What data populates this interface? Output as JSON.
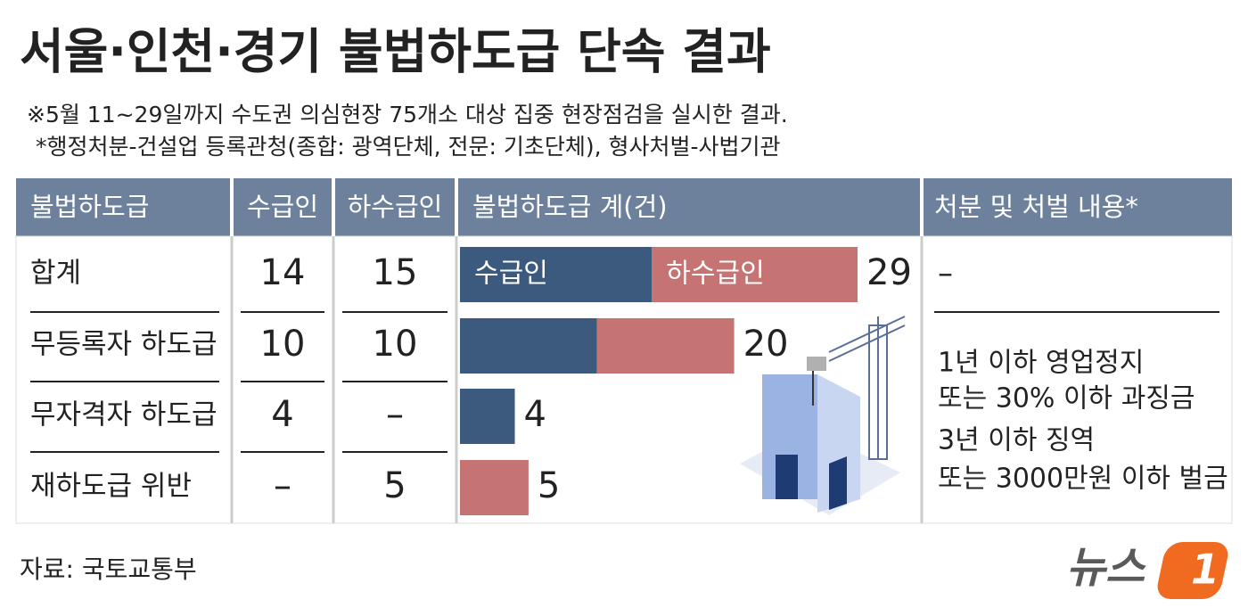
{
  "title": "서울·인천·경기 불법하도급 단속 결과",
  "notes": [
    "※5월 11~29일까지 수도권 의심현장 75개소 대상 집중 현장점검을 실시한 결과.",
    "*행정처분-건설업 등록관청(종합: 광역단체, 전문: 기초단체), 형사처벌-사법기관"
  ],
  "source": "자료: 국토교통부",
  "logo": {
    "text": "뉴스",
    "mark": "1"
  },
  "chart_data": {
    "type": "bar",
    "orientation": "horizontal",
    "stacked": true,
    "columns": [
      "불법하도급",
      "수급인",
      "하수급인",
      "불법하도급 계(건)",
      "처분 및 처벌 내용*"
    ],
    "categories": [
      "합계",
      "무등록자 하도급",
      "무자격자 하도급",
      "재하도급 위반"
    ],
    "series": [
      {
        "name": "수급인",
        "color": "#3b5a7d",
        "values": [
          14,
          10,
          4,
          0
        ],
        "value_labels": [
          "14",
          "10",
          "4",
          "–"
        ]
      },
      {
        "name": "하수급인",
        "color": "#c57473",
        "values": [
          15,
          10,
          0,
          5
        ],
        "value_labels": [
          "15",
          "10",
          "–",
          "5"
        ]
      }
    ],
    "totals": [
      29,
      20,
      4,
      5
    ],
    "disposition": {
      "first_row": "–",
      "lines": [
        "1년 이하 영업정지",
        "또는 30% 이하 과징금",
        "3년 이하 징역",
        "또는 3000만원 이하 벌금"
      ]
    }
  }
}
